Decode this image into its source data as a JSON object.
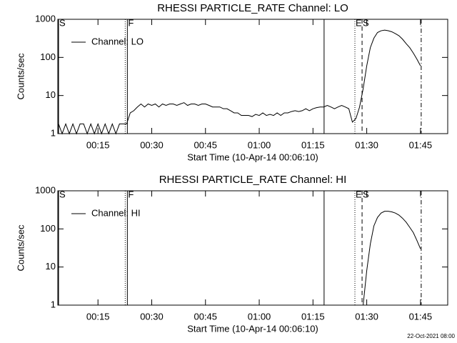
{
  "chart_data": [
    {
      "type": "line",
      "title": "RHESSI PARTICLE_RATE Channel: LO",
      "xlabel": "Start Time (10-Apr-14 00:06:10)",
      "ylabel": "Counts/sec",
      "log_y": true,
      "ylim": [
        1,
        1000
      ],
      "yticks": [
        1,
        10,
        100,
        1000
      ],
      "xlim": [
        3.8,
        112.6
      ],
      "xticks": [
        {
          "value": 15,
          "label": "00:15"
        },
        {
          "value": 30,
          "label": "00:30"
        },
        {
          "value": 45,
          "label": "00:45"
        },
        {
          "value": 60,
          "label": "01:00"
        },
        {
          "value": 75,
          "label": "01:15"
        },
        {
          "value": 90,
          "label": "01:30"
        },
        {
          "value": 105,
          "label": "01:45"
        }
      ],
      "legend": "top-left",
      "markers": [
        {
          "x": 4,
          "style": "solid",
          "label": "S"
        },
        {
          "x": 22.6,
          "style": "dotted"
        },
        {
          "x": 23.2,
          "style": "solid",
          "label": "F"
        },
        {
          "x": 78.1,
          "style": "solid"
        },
        {
          "x": 86.7,
          "style": "dotted",
          "label": "E"
        },
        {
          "x": 88.7,
          "style": "dashed",
          "label": "S"
        },
        {
          "x": 105.2,
          "style": "dashdot"
        }
      ],
      "x": [
        4,
        5,
        6,
        7,
        8,
        9,
        10,
        11,
        12,
        13,
        14,
        15,
        16,
        17,
        18,
        19,
        20,
        21,
        22,
        23,
        24,
        25,
        26,
        27,
        28,
        29,
        30,
        31,
        32,
        33,
        34,
        35,
        36,
        37,
        38,
        39,
        40,
        41,
        42,
        43,
        44,
        45,
        46,
        47,
        48,
        49,
        50,
        51,
        52,
        53,
        54,
        55,
        56,
        57,
        58,
        59,
        60,
        61,
        62,
        63,
        64,
        65,
        66,
        67,
        68,
        69,
        70,
        71,
        72,
        73,
        74,
        75,
        76,
        77,
        78,
        79,
        80,
        81,
        82,
        83,
        84,
        85,
        86,
        87,
        88,
        89,
        90,
        91,
        92,
        93,
        94,
        95,
        96,
        97,
        98,
        99,
        100,
        101,
        102,
        103,
        104,
        105
      ],
      "series": [
        {
          "name": "Channel: LO",
          "color": "#000000",
          "values": [
            1.8,
            1,
            1.8,
            1,
            1.8,
            1,
            1.8,
            1.8,
            1,
            1.8,
            1,
            1.8,
            1,
            1.8,
            1,
            1.8,
            1,
            1.8,
            1.8,
            1.8,
            3.5,
            4,
            5,
            6,
            5,
            6,
            5.5,
            6,
            5,
            6,
            5.5,
            6,
            6,
            5.5,
            6,
            6.5,
            5.5,
            6,
            6,
            5.5,
            6,
            6,
            5.5,
            5,
            5,
            5,
            4.5,
            4.5,
            4,
            3.5,
            3.5,
            3,
            3,
            3,
            2.8,
            3.2,
            3,
            3.5,
            3,
            3.2,
            3,
            3.5,
            3,
            3.5,
            3.5,
            3.8,
            4,
            3.8,
            4,
            4.5,
            4,
            4.5,
            4.8,
            5,
            5,
            5.5,
            5,
            4.5,
            5,
            5.5,
            5,
            4.5,
            2,
            2.5,
            5,
            15,
            60,
            180,
            320,
            450,
            500,
            520,
            500,
            470,
            420,
            370,
            300,
            230,
            180,
            130,
            90,
            60
          ]
        }
      ]
    },
    {
      "type": "line",
      "title": "RHESSI PARTICLE_RATE Channel: HI",
      "xlabel": "Start Time (10-Apr-14 00:06:10)",
      "ylabel": "Counts/sec",
      "log_y": true,
      "ylim": [
        1,
        1000
      ],
      "yticks": [
        1,
        10,
        100,
        1000
      ],
      "xlim": [
        3.8,
        112.6
      ],
      "xticks": [
        {
          "value": 15,
          "label": "00:15"
        },
        {
          "value": 30,
          "label": "00:30"
        },
        {
          "value": 45,
          "label": "00:45"
        },
        {
          "value": 60,
          "label": "01:00"
        },
        {
          "value": 75,
          "label": "01:15"
        },
        {
          "value": 90,
          "label": "01:30"
        },
        {
          "value": 105,
          "label": "01:45"
        }
      ],
      "legend": "top-left",
      "markers": [
        {
          "x": 4,
          "style": "solid",
          "label": "S"
        },
        {
          "x": 22.6,
          "style": "dotted"
        },
        {
          "x": 23.2,
          "style": "solid",
          "label": "F"
        },
        {
          "x": 78.1,
          "style": "solid"
        },
        {
          "x": 86.7,
          "style": "dotted",
          "label": "E"
        },
        {
          "x": 88.7,
          "style": "dashed",
          "label": "S"
        },
        {
          "x": 105.2,
          "style": "dashdot"
        }
      ],
      "x": [
        89,
        90,
        91,
        92,
        93,
        94,
        95,
        96,
        97,
        98,
        99,
        100,
        101,
        102,
        103,
        104,
        105
      ],
      "series": [
        {
          "name": "Channel: HI",
          "color": "#000000",
          "values": [
            1,
            8,
            40,
            120,
            200,
            260,
            290,
            290,
            280,
            260,
            230,
            190,
            150,
            110,
            80,
            50,
            30
          ]
        }
      ]
    }
  ],
  "footer": "22-Oct-2021 08:00"
}
